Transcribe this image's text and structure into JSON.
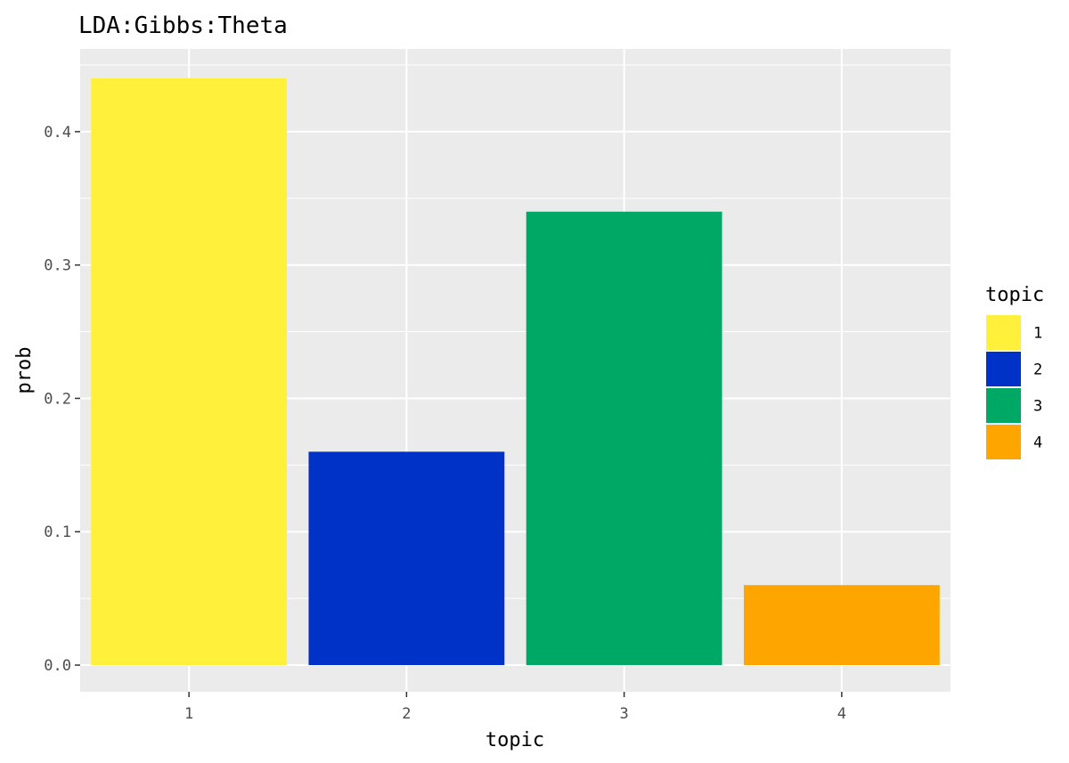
{
  "chart_data": {
    "type": "bar",
    "title": "LDA:Gibbs:Theta",
    "xlabel": "topic",
    "ylabel": "prob",
    "categories": [
      "1",
      "2",
      "3",
      "4"
    ],
    "values": [
      0.44,
      0.16,
      0.34,
      0.06
    ],
    "colors": [
      "#FFF03C",
      "#0032C8",
      "#00A866",
      "#FFA500"
    ],
    "ylim": [
      -0.02,
      0.462
    ],
    "yticks": [
      0.0,
      0.1,
      0.2,
      0.3,
      0.4
    ],
    "ytick_labels": [
      "0.0",
      "0.1",
      "0.2",
      "0.3",
      "0.4"
    ],
    "grid": true,
    "panel_background": "#EBEBEB",
    "grid_color": "#FFFFFF",
    "legend": {
      "title": "topic",
      "position": "right",
      "entries": [
        "1",
        "2",
        "3",
        "4"
      ]
    }
  }
}
